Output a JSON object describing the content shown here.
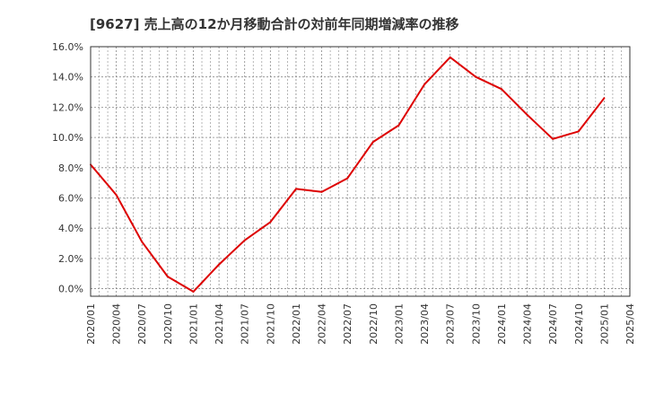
{
  "chart_data": {
    "type": "line",
    "title": "[9627]  売上高の12か月移動合計の対前年同期増減率の推移",
    "xlabel": "",
    "ylabel": "",
    "ylim": [
      -0.5,
      16.0
    ],
    "yticks": [
      0.0,
      2.0,
      4.0,
      6.0,
      8.0,
      10.0,
      12.0,
      14.0,
      16.0
    ],
    "ytick_labels": [
      "0.0%",
      "2.0%",
      "4.0%",
      "6.0%",
      "8.0%",
      "10.0%",
      "12.0%",
      "14.0%",
      "16.0%"
    ],
    "x_ticks": [
      "2020/01",
      "2020/04",
      "2020/07",
      "2020/10",
      "2021/01",
      "2021/04",
      "2021/07",
      "2021/10",
      "2022/01",
      "2022/04",
      "2022/07",
      "2022/10",
      "2023/01",
      "2023/04",
      "2023/07",
      "2023/10",
      "2024/01",
      "2024/04",
      "2024/07",
      "2024/10",
      "2025/01",
      "2025/04"
    ],
    "grid": true,
    "legend": "none",
    "series": [
      {
        "name": "対前年同期増減率",
        "color": "#dd0000",
        "values": [
          8.2,
          6.2,
          3.1,
          0.8,
          -0.2,
          1.6,
          3.2,
          4.4,
          6.6,
          6.4,
          7.3,
          9.7,
          10.8,
          13.5,
          15.3,
          14.0,
          13.2,
          11.5,
          9.9,
          10.4,
          12.6
        ]
      }
    ]
  }
}
